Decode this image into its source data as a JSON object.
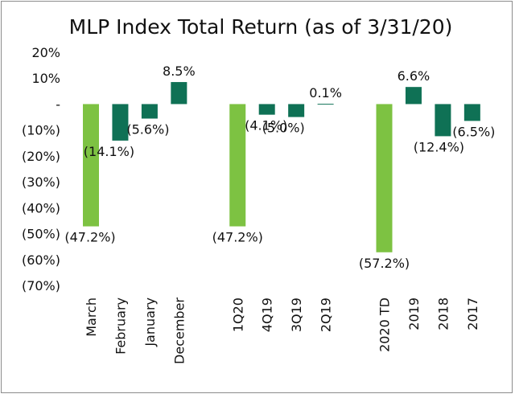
{
  "chart_data": {
    "type": "bar",
    "title": "MLP Index Total Return (as of 3/31/20)",
    "xlabel": "",
    "ylabel": "",
    "ylim": [
      -70,
      20
    ],
    "yticks": [
      20,
      10,
      0,
      -10,
      -20,
      -30,
      -40,
      -50,
      -60,
      -70
    ],
    "ytick_labels": [
      "20%",
      "10%",
      "-",
      "(10%)",
      "(20%)",
      "(30%)",
      "(40%)",
      "(50%)",
      "(60%)",
      "(70%)"
    ],
    "grid": false,
    "legend": "none",
    "colors": {
      "highlight": "#7dc242",
      "standard": "#0f7155"
    },
    "categories": [
      "March",
      "February",
      "January",
      "December",
      "",
      "1Q20",
      "4Q19",
      "3Q19",
      "2Q19",
      "",
      "2020 TD",
      "2019",
      "2018",
      "2017"
    ],
    "values": [
      -47.2,
      -14.1,
      -5.6,
      8.5,
      null,
      -47.2,
      -4.1,
      -5.0,
      0.1,
      null,
      -57.2,
      6.6,
      -12.4,
      -6.5
    ],
    "data_labels": [
      "(47.2%)",
      "(14.1%)",
      "(5.6%)",
      "8.5%",
      "",
      "(47.2%)",
      "(4.1%)",
      "(5.0%)",
      "0.1%",
      "",
      "(57.2%)",
      "6.6%",
      "(12.4%)",
      "(6.5%)"
    ],
    "highlight": [
      true,
      false,
      false,
      false,
      false,
      true,
      false,
      false,
      false,
      false,
      true,
      false,
      false,
      false
    ]
  }
}
